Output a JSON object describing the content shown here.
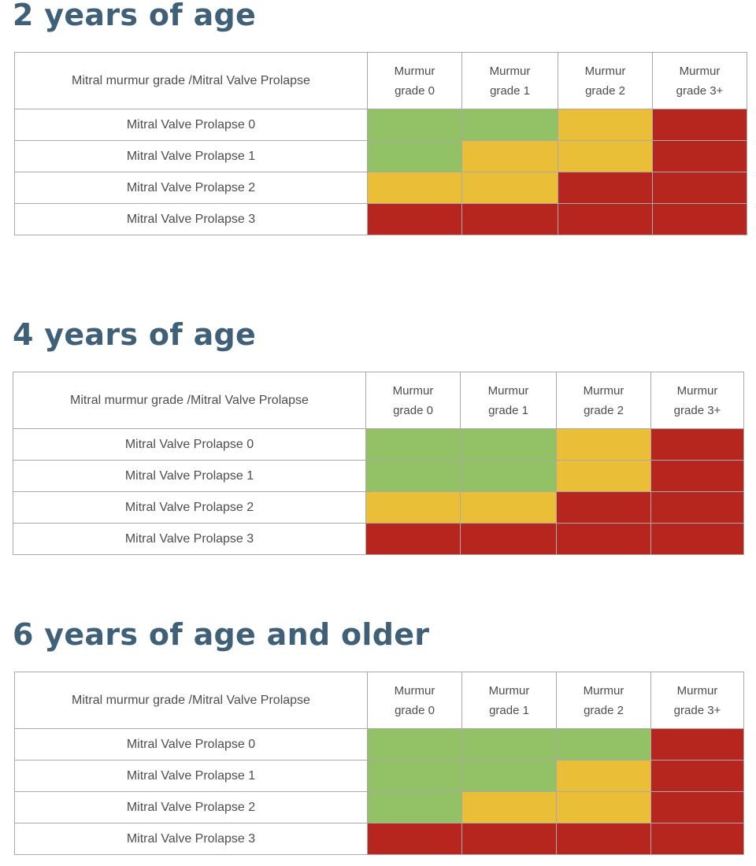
{
  "chart_data": [
    {
      "type": "table",
      "title": "2 years of age",
      "corner_header": "Mitral murmur grade /Mitral Valve Prolapse",
      "columns": [
        [
          "Murmur",
          "grade 0"
        ],
        [
          "Murmur",
          "grade 1"
        ],
        [
          "Murmur",
          "grade 2"
        ],
        [
          "Murmur",
          "grade 3+"
        ]
      ],
      "rows": [
        {
          "label": "Mitral Valve Prolapse  0",
          "cells": [
            "green",
            "green",
            "yellow",
            "red"
          ]
        },
        {
          "label": "Mitral Valve Prolapse 1",
          "cells": [
            "green",
            "yellow",
            "yellow",
            "red"
          ]
        },
        {
          "label": "Mitral Valve Prolapse 2",
          "cells": [
            "yellow",
            "yellow",
            "red",
            "red"
          ]
        },
        {
          "label": "Mitral Valve Prolapse 3",
          "cells": [
            "red",
            "red",
            "red",
            "red"
          ]
        }
      ]
    },
    {
      "type": "table",
      "title": "4 years of age",
      "corner_header": "Mitral murmur grade /Mitral Valve Prolapse",
      "columns": [
        [
          "Murmur",
          "grade 0"
        ],
        [
          "Murmur",
          "grade 1"
        ],
        [
          "Murmur",
          "grade 2"
        ],
        [
          "Murmur",
          "grade 3+"
        ]
      ],
      "rows": [
        {
          "label": "Mitral Valve Prolapse  0",
          "cells": [
            "green",
            "green",
            "yellow",
            "red"
          ]
        },
        {
          "label": "Mitral Valve Prolapse 1",
          "cells": [
            "green",
            "green",
            "yellow",
            "red"
          ]
        },
        {
          "label": "Mitral Valve Prolapse 2",
          "cells": [
            "yellow",
            "yellow",
            "red",
            "red"
          ]
        },
        {
          "label": "Mitral Valve Prolapse 3",
          "cells": [
            "red",
            "red",
            "red",
            "red"
          ]
        }
      ]
    },
    {
      "type": "table",
      "title": "6 years of age and older",
      "corner_header": "Mitral murmur grade /Mitral Valve Prolapse",
      "columns": [
        [
          "Murmur",
          "grade 0"
        ],
        [
          "Murmur",
          "grade 1"
        ],
        [
          "Murmur",
          "grade 2"
        ],
        [
          "Murmur",
          "grade 3+"
        ]
      ],
      "rows": [
        {
          "label": "Mitral Valve Prolapse  0",
          "cells": [
            "green",
            "green",
            "green",
            "red"
          ]
        },
        {
          "label": "Mitral Valve Prolapse 1",
          "cells": [
            "green",
            "green",
            "yellow",
            "red"
          ]
        },
        {
          "label": "Mitral Valve Prolapse 2",
          "cells": [
            "green",
            "yellow",
            "yellow",
            "red"
          ]
        },
        {
          "label": "Mitral Valve Prolapse 3",
          "cells": [
            "red",
            "red",
            "red",
            "red"
          ]
        }
      ]
    }
  ],
  "colors": {
    "green": "#92c265",
    "yellow": "#ebbe38",
    "red": "#b6261f",
    "title_text": "#3f6077",
    "cell_text": "#4d4d4d",
    "border": "#a9a9a9"
  }
}
